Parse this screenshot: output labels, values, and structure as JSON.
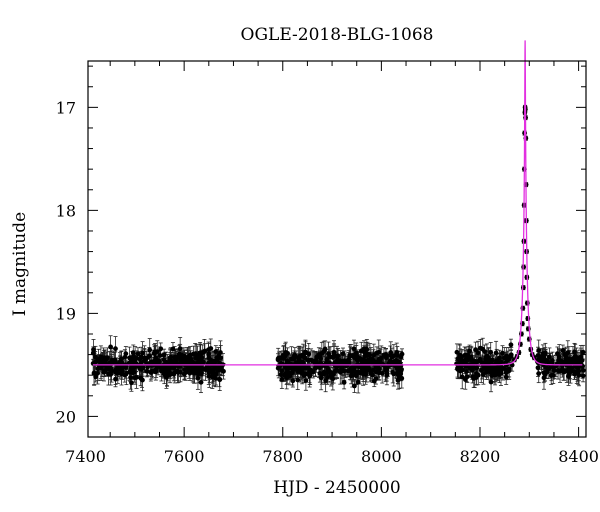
{
  "chart_data": {
    "type": "scatter",
    "title": "OGLE-2018-BLG-1068",
    "xlabel": "HJD - 2450000",
    "ylabel": "I magnitude",
    "xlim": [
      7405,
      8415
    ],
    "ylim": [
      20.2,
      16.55
    ],
    "y_inverted": true,
    "x_ticks": [
      7400,
      7600,
      7800,
      8000,
      8200,
      8400
    ],
    "y_ticks": [
      17,
      18,
      19,
      20
    ],
    "grid": false,
    "series": [
      {
        "marker": "filled-circle-with-errorbars",
        "color": "#000000",
        "baseline_mag": 19.5,
        "season_ranges": [
          [
            7415,
            7680
          ],
          [
            7790,
            8045
          ],
          [
            8150,
            8410
          ]
        ],
        "peak_points": [
          {
            "x": 8291.5,
            "y": 17.0
          },
          {
            "x": 8292.0,
            "y": 17.02
          },
          {
            "x": 8291.0,
            "y": 17.05
          },
          {
            "x": 8292.5,
            "y": 17.1
          },
          {
            "x": 8290.5,
            "y": 17.25
          },
          {
            "x": 8293.0,
            "y": 17.3
          },
          {
            "x": 8290.0,
            "y": 17.6
          },
          {
            "x": 8293.5,
            "y": 17.75
          },
          {
            "x": 8289.5,
            "y": 17.95
          },
          {
            "x": 8294.0,
            "y": 18.1
          },
          {
            "x": 8289.0,
            "y": 18.3
          },
          {
            "x": 8294.5,
            "y": 18.4
          },
          {
            "x": 8288.5,
            "y": 18.55
          },
          {
            "x": 8295.0,
            "y": 18.65
          },
          {
            "x": 8288.0,
            "y": 18.75
          },
          {
            "x": 8296.0,
            "y": 18.9
          },
          {
            "x": 8287.0,
            "y": 18.95
          },
          {
            "x": 8297.0,
            "y": 19.05
          },
          {
            "x": 8286.0,
            "y": 19.1
          },
          {
            "x": 8298.0,
            "y": 19.15
          },
          {
            "x": 8284.0,
            "y": 19.2
          },
          {
            "x": 8300.0,
            "y": 19.25
          },
          {
            "x": 8282.0,
            "y": 19.3
          },
          {
            "x": 8303.0,
            "y": 19.35
          },
          {
            "x": 8279.0,
            "y": 19.38
          },
          {
            "x": 8306.0,
            "y": 19.4
          },
          {
            "x": 8275.0,
            "y": 19.42
          },
          {
            "x": 8310.0,
            "y": 19.43
          },
          {
            "x": 8270.0,
            "y": 19.45
          },
          {
            "x": 8316.0,
            "y": 19.46
          }
        ]
      }
    ],
    "model": {
      "type": "line",
      "color": "#e22fe0",
      "t0": 8291.5,
      "u0": 0.055,
      "tE": 9.0,
      "baseline_mag": 19.5,
      "x_range": [
        7415,
        8410
      ]
    }
  }
}
